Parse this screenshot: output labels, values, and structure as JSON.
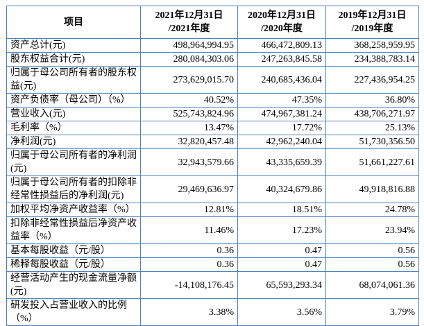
{
  "colors": {
    "border": "#4f81bd",
    "text": "#000000",
    "background": "#ffffff"
  },
  "table": {
    "header": {
      "item": "项目",
      "periods": [
        "2021年12月31日\n/2021年度",
        "2020年12月31日\n/2020年度",
        "2019年12月31日\n/2019年度"
      ]
    },
    "rows": [
      {
        "label": "资产总计(元)",
        "values": [
          "498,964,994.95",
          "466,472,809.13",
          "368,258,959.95"
        ]
      },
      {
        "label": "股东权益合计(元)",
        "values": [
          "280,084,303.06",
          "247,263,845.58",
          "234,388,783.14"
        ]
      },
      {
        "label": "归属于母公司所有者的股东权益(元)",
        "values": [
          "273,629,015.70",
          "240,685,436.04",
          "227,436,954.25"
        ]
      },
      {
        "label": "资产负债率（母公司）（%）",
        "values": [
          "40.52%",
          "47.35%",
          "36.80%"
        ]
      },
      {
        "label": "营业收入(元)",
        "values": [
          "525,743,824.96",
          "474,967,381.24",
          "438,706,271.97"
        ]
      },
      {
        "label": "毛利率（%）",
        "values": [
          "13.47%",
          "17.72%",
          "25.13%"
        ]
      },
      {
        "label": "净利润(元)",
        "values": [
          "32,820,457.48",
          "42,962,240.04",
          "51,730,356.50"
        ]
      },
      {
        "label": "归属于母公司所有者的净利润(元)",
        "values": [
          "32,943,579.66",
          "43,335,659.39",
          "51,661,227.61"
        ]
      },
      {
        "label": "归属于母公司所有者的扣除非经常性损益后的净利润(元)",
        "values": [
          "29,469,636.97",
          "40,324,679.86",
          "49,918,816.88"
        ]
      },
      {
        "label": "加权平均净资产收益率（%）",
        "values": [
          "12.81%",
          "18.51%",
          "24.78%"
        ]
      },
      {
        "label": "扣除非经常性损益后净资产收益率（%）",
        "values": [
          "11.46%",
          "17.23%",
          "23.94%"
        ]
      },
      {
        "label": "基本每股收益（元/股）",
        "values": [
          "0.36",
          "0.47",
          "0.56"
        ]
      },
      {
        "label": "稀释每股收益（元/股）",
        "values": [
          "0.36",
          "0.47",
          "0.56"
        ]
      },
      {
        "label": "经营活动产生的现金流量净额(元)",
        "values": [
          "-14,108,176.45",
          "65,593,293.34",
          "68,074,061.36"
        ]
      },
      {
        "label": "研发投入占营业收入的比例（%）",
        "values": [
          "3.38%",
          "3.56%",
          "3.79%"
        ]
      }
    ]
  }
}
